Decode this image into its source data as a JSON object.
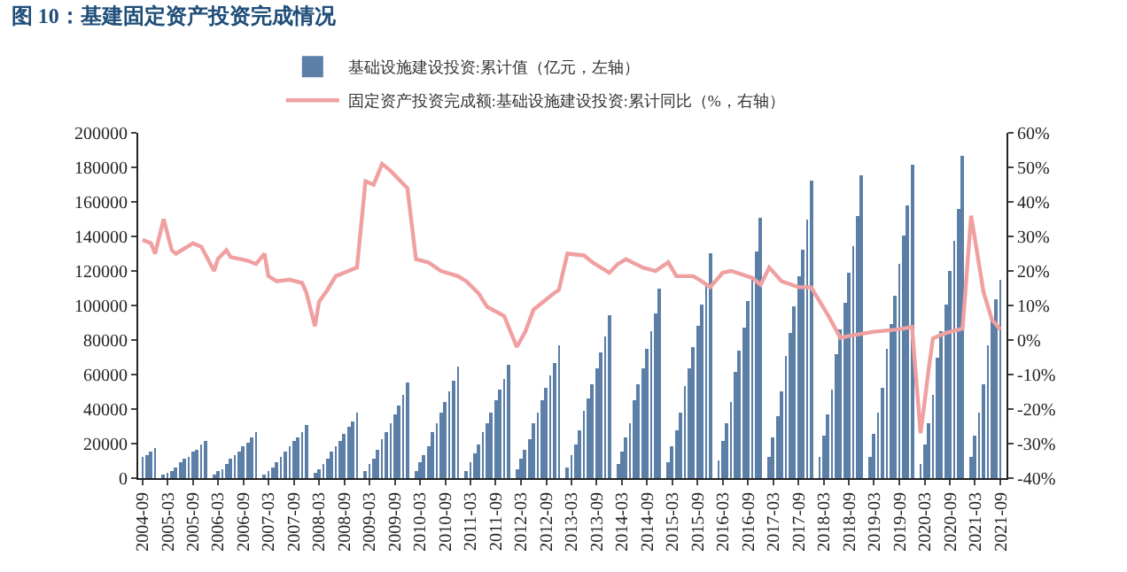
{
  "chart_data": {
    "type": "bar",
    "title": "图 10：基建固定资产投资完成情况",
    "legend": "top",
    "xlim": [
      "2004-08-01",
      "2021-10-15"
    ],
    "xticks": [
      "2004-09",
      "2005-03",
      "2005-09",
      "2006-03",
      "2006-09",
      "2007-03",
      "2007-09",
      "2008-03",
      "2008-09",
      "2009-03",
      "2009-09",
      "2010-03",
      "2010-09",
      "2011-03",
      "2011-09",
      "2012-03",
      "2012-09",
      "2013-03",
      "2013-09",
      "2014-03",
      "2014-09",
      "2015-03",
      "2015-09",
      "2016-03",
      "2016-09",
      "2017-03",
      "2017-09",
      "2018-03",
      "2018-09",
      "2019-03",
      "2019-09",
      "2020-03",
      "2020-09",
      "2021-03",
      "2021-09"
    ],
    "ylim": [
      0,
      200000
    ],
    "yticks": [
      0,
      20000,
      40000,
      60000,
      80000,
      100000,
      120000,
      140000,
      160000,
      180000,
      200000
    ],
    "y2lim": [
      -40,
      60
    ],
    "y2ticks": [
      {
        "value": -40,
        "label": "-40%"
      },
      {
        "value": -30,
        "label": "-30%"
      },
      {
        "value": -20,
        "label": "-20%"
      },
      {
        "value": -10,
        "label": "-10%"
      },
      {
        "value": 0,
        "label": "0%"
      },
      {
        "value": 10,
        "label": "10%"
      },
      {
        "value": 20,
        "label": "20%"
      },
      {
        "value": 30,
        "label": "30%"
      },
      {
        "value": 40,
        "label": "40%"
      },
      {
        "value": 50,
        "label": "50%"
      },
      {
        "value": 60,
        "label": "60%"
      }
    ],
    "series": [
      {
        "name": "基础设施建设投资:累计值（亿元，左轴）",
        "color": "#5b7fa6",
        "x": [
          "2004-09",
          "2004-10",
          "2004-11",
          "2004-12",
          "2005-02",
          "2005-03",
          "2005-04",
          "2005-05",
          "2005-06",
          "2005-07",
          "2005-08",
          "2005-09",
          "2005-10",
          "2005-11",
          "2005-12",
          "2006-02",
          "2006-03",
          "2006-04",
          "2006-05",
          "2006-06",
          "2006-07",
          "2006-08",
          "2006-09",
          "2006-10",
          "2006-11",
          "2006-12",
          "2007-02",
          "2007-03",
          "2007-04",
          "2007-05",
          "2007-06",
          "2007-07",
          "2007-08",
          "2007-09",
          "2007-10",
          "2007-11",
          "2007-12",
          "2008-02",
          "2008-03",
          "2008-04",
          "2008-05",
          "2008-06",
          "2008-07",
          "2008-08",
          "2008-09",
          "2008-10",
          "2008-11",
          "2008-12",
          "2009-02",
          "2009-03",
          "2009-04",
          "2009-05",
          "2009-06",
          "2009-07",
          "2009-08",
          "2009-09",
          "2009-10",
          "2009-11",
          "2009-12",
          "2010-02",
          "2010-03",
          "2010-04",
          "2010-05",
          "2010-06",
          "2010-07",
          "2010-08",
          "2010-09",
          "2010-10",
          "2010-11",
          "2010-12",
          "2011-02",
          "2011-03",
          "2011-04",
          "2011-05",
          "2011-06",
          "2011-07",
          "2011-08",
          "2011-09",
          "2011-10",
          "2011-11",
          "2011-12",
          "2012-02",
          "2012-03",
          "2012-04",
          "2012-05",
          "2012-06",
          "2012-07",
          "2012-08",
          "2012-09",
          "2012-10",
          "2012-11",
          "2012-12",
          "2013-02",
          "2013-03",
          "2013-04",
          "2013-05",
          "2013-06",
          "2013-07",
          "2013-08",
          "2013-09",
          "2013-10",
          "2013-11",
          "2013-12",
          "2014-02",
          "2014-03",
          "2014-04",
          "2014-05",
          "2014-06",
          "2014-07",
          "2014-08",
          "2014-09",
          "2014-10",
          "2014-11",
          "2014-12",
          "2015-02",
          "2015-03",
          "2015-04",
          "2015-05",
          "2015-06",
          "2015-07",
          "2015-08",
          "2015-09",
          "2015-10",
          "2015-11",
          "2015-12",
          "2016-02",
          "2016-03",
          "2016-04",
          "2016-05",
          "2016-06",
          "2016-07",
          "2016-08",
          "2016-09",
          "2016-10",
          "2016-11",
          "2016-12",
          "2017-02",
          "2017-03",
          "2017-04",
          "2017-05",
          "2017-06",
          "2017-07",
          "2017-08",
          "2017-09",
          "2017-10",
          "2017-11",
          "2017-12",
          "2018-02",
          "2018-03",
          "2018-04",
          "2018-05",
          "2018-06",
          "2018-07",
          "2018-08",
          "2018-09",
          "2018-10",
          "2018-11",
          "2018-12",
          "2019-02",
          "2019-03",
          "2019-04",
          "2019-05",
          "2019-06",
          "2019-07",
          "2019-08",
          "2019-09",
          "2019-10",
          "2019-11",
          "2019-12",
          "2020-02",
          "2020-03",
          "2020-04",
          "2020-05",
          "2020-06",
          "2020-07",
          "2020-08",
          "2020-09",
          "2020-10",
          "2020-11",
          "2020-12",
          "2021-02",
          "2021-03",
          "2021-04",
          "2021-05",
          "2021-06",
          "2021-07",
          "2021-08",
          "2021-09"
        ],
        "values": [
          12000,
          13000,
          15000,
          17000,
          1500,
          3100,
          4600,
          6400,
          9000,
          10800,
          12800,
          15000,
          16900,
          19100,
          22000,
          1900,
          3700,
          5600,
          7700,
          10900,
          13000,
          15400,
          18000,
          20400,
          23100,
          26500,
          2200,
          4300,
          6500,
          9000,
          12700,
          15200,
          18000,
          21100,
          23900,
          27000,
          31000,
          2700,
          5300,
          8000,
          11000,
          15600,
          18600,
          22000,
          25800,
          29300,
          33100,
          38000,
          3900,
          7700,
          11600,
          16000,
          22600,
          27000,
          31900,
          37400,
          42400,
          47900,
          55000,
          4500,
          9100,
          13600,
          18800,
          26500,
          31700,
          37500,
          44000,
          49800,
          56300,
          64700,
          4600,
          9200,
          13900,
          19100,
          27100,
          32300,
          38300,
          44900,
          50800,
          57400,
          66000,
          5400,
          10800,
          16200,
          22300,
          31600,
          37700,
          44700,
          52400,
          59300,
          67000,
          77000,
          6600,
          13200,
          19700,
          27300,
          38500,
          46100,
          54500,
          63900,
          72400,
          81800,
          94000,
          7700,
          15400,
          23100,
          31900,
          45100,
          53900,
          63800,
          74800,
          84700,
          95700,
          110000,
          9100,
          18200,
          27300,
          37700,
          53300,
          63700,
          75400,
          88400,
          100100,
          113100,
          130000,
          10600,
          21100,
          31700,
          43800,
          61900,
          74000,
          87600,
          102700,
          116300,
          131400,
          151000,
          12000,
          24100,
          36100,
          49900,
          70500,
          84300,
          99800,
          117000,
          132400,
          149600,
          172000,
          12300,
          24500,
          36800,
          50800,
          71800,
          85800,
          101500,
          119000,
          134800,
          152300,
          175000,
          12700,
          25500,
          38200,
          52800,
          74600,
          89200,
          105600,
          123800,
          140100,
          158300,
          182000,
          8000,
          19000,
          32000,
          48000,
          70000,
          85000,
          101000,
          120000,
          137000,
          156000,
          187000,
          12000,
          25000,
          38000,
          54000,
          77000,
          92000,
          104000,
          115000
        ]
      },
      {
        "name": "固定资产投资完成额:基础设施建设投资:累计同比（%，右轴）",
        "type": "line",
        "axis": "y2",
        "color": "#f0a0a0",
        "x": [
          "2004-09",
          "2004-11",
          "2004-12",
          "2005-02",
          "2005-04",
          "2005-05",
          "2005-09",
          "2005-11",
          "2006-02",
          "2006-03",
          "2006-05",
          "2006-06",
          "2006-10",
          "2006-12",
          "2007-02",
          "2007-03",
          "2007-05",
          "2007-08",
          "2007-11",
          "2007-12",
          "2008-02",
          "2008-03",
          "2008-05",
          "2008-07",
          "2008-10",
          "2008-12",
          "2009-02",
          "2009-04",
          "2009-06",
          "2009-08",
          "2009-12",
          "2010-02",
          "2010-05",
          "2010-08",
          "2010-12",
          "2011-02",
          "2011-05",
          "2011-07",
          "2011-11",
          "2012-02",
          "2012-04",
          "2012-06",
          "2012-11",
          "2012-12",
          "2013-02",
          "2013-06",
          "2013-08",
          "2013-12",
          "2014-02",
          "2014-04",
          "2014-08",
          "2014-11",
          "2015-02",
          "2015-04",
          "2015-08",
          "2015-10",
          "2015-12",
          "2016-03",
          "2016-05",
          "2016-10",
          "2016-12",
          "2017-02",
          "2017-05",
          "2017-09",
          "2017-12",
          "2018-04",
          "2018-07",
          "2018-09",
          "2019-03",
          "2019-09",
          "2019-12",
          "2020-02",
          "2020-03",
          "2020-04",
          "2020-05",
          "2020-08",
          "2020-12",
          "2021-02",
          "2021-05",
          "2021-07",
          "2021-09"
        ],
        "values": [
          29,
          28,
          25,
          35,
          26,
          25,
          28,
          27,
          20,
          23.5,
          26,
          24,
          23,
          22,
          25,
          18.5,
          17,
          17.5,
          16.5,
          13.7,
          4,
          11,
          14.5,
          18.5,
          20,
          21,
          46,
          45,
          51,
          49,
          44,
          23.4,
          22.5,
          20,
          18.5,
          17,
          13.5,
          9.6,
          7,
          -2,
          2.3,
          8.8,
          13.7,
          14.5,
          25,
          24.5,
          22.5,
          19.5,
          22,
          23.4,
          21,
          20,
          22.5,
          18.5,
          18.5,
          17,
          15.3,
          19.5,
          20,
          18,
          16,
          21,
          17,
          15.3,
          15.3,
          7.3,
          0.6,
          1.2,
          2.4,
          3.1,
          3.8,
          -27,
          -18,
          -8,
          0.5,
          2,
          3.3,
          36,
          14,
          6,
          3
        ]
      }
    ]
  }
}
